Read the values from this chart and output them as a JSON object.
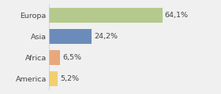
{
  "categories": [
    "Europa",
    "Asia",
    "Africa",
    "America"
  ],
  "values": [
    64.1,
    24.2,
    6.5,
    5.2
  ],
  "labels": [
    "64,1%",
    "24,2%",
    "6,5%",
    "5,2%"
  ],
  "bar_colors": [
    "#b5c98e",
    "#6b8cba",
    "#e8a87c",
    "#f0d070"
  ],
  "background_color": "#f0f0f0",
  "xlim": [
    0,
    82
  ],
  "bar_height": 0.72,
  "label_fontsize": 6.8,
  "tick_fontsize": 6.8
}
